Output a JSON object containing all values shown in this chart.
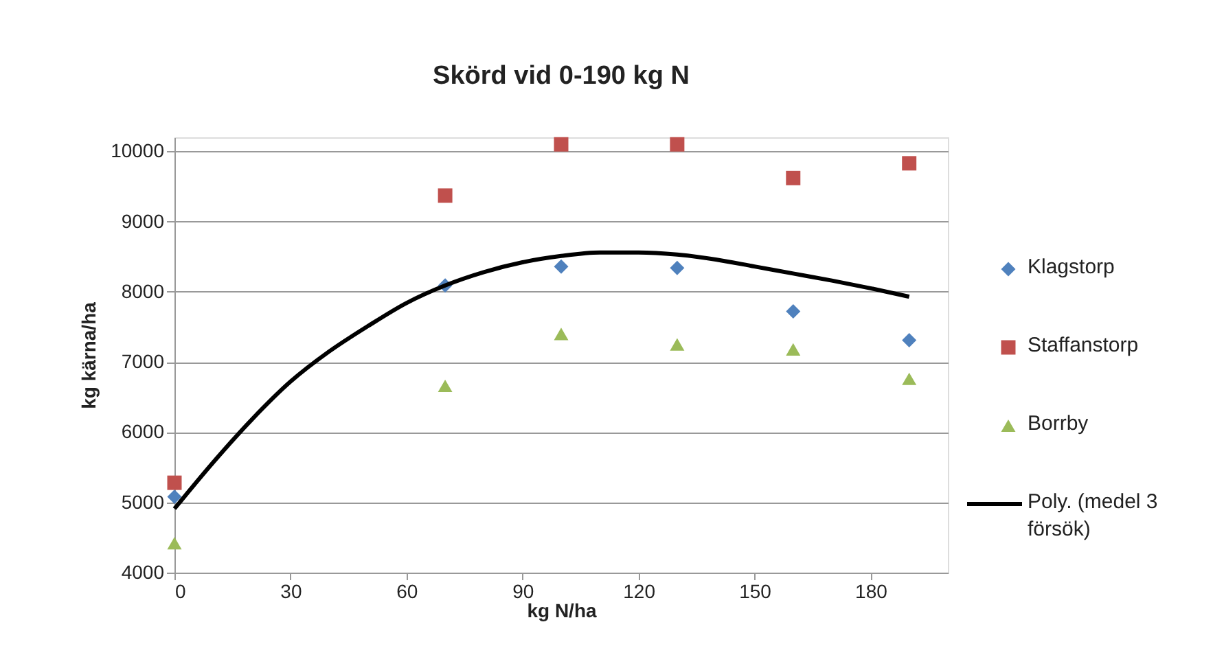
{
  "chart_data": {
    "type": "scatter",
    "title": "Skörd vid 0-190 kg N",
    "xlabel": "kg N/ha",
    "ylabel": "kg kärna/ha",
    "x": [
      0,
      70,
      100,
      130,
      160,
      190
    ],
    "series": [
      {
        "name": "Klagstorp",
        "color": "#4f81bd",
        "marker": "diamond",
        "values": [
          5080,
          8090,
          8360,
          8340,
          7720,
          7310
        ]
      },
      {
        "name": "Staffanstorp",
        "color": "#c0504d",
        "marker": "square",
        "values": [
          5280,
          9370,
          10100,
          10100,
          9620,
          9830
        ]
      },
      {
        "name": "Borrby",
        "color": "#9bbb59",
        "marker": "triangle",
        "values": [
          4420,
          6660,
          7400,
          7250,
          7180,
          6760
        ]
      },
      {
        "name": "Poly. (medel 3 försök)",
        "color": "#000000",
        "type": "line",
        "marker": "none",
        "x": [
          0,
          10,
          20,
          30,
          40,
          50,
          60,
          70,
          80,
          90,
          100,
          110,
          120,
          130,
          140,
          150,
          160,
          170,
          180,
          190
        ],
        "values": [
          4910,
          5570,
          6180,
          6720,
          7150,
          7510,
          7840,
          8090,
          8280,
          8420,
          8510,
          8560,
          8560,
          8530,
          8460,
          8360,
          8260,
          8160,
          8050,
          7930
        ]
      }
    ],
    "xlim": [
      0,
      200
    ],
    "xticks": [
      0,
      30,
      60,
      90,
      120,
      150,
      180
    ],
    "ylim": [
      4000,
      10200
    ],
    "yticks": [
      4000,
      5000,
      6000,
      7000,
      8000,
      9000,
      10000
    ],
    "grid": "y",
    "legend": "right"
  }
}
